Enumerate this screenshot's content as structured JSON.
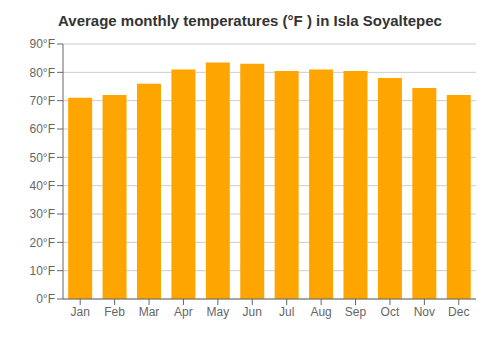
{
  "chart_data": {
    "type": "bar",
    "title": "Average monthly temperatures (°F ) in Isla Soyaltepec",
    "categories": [
      "Jan",
      "Feb",
      "Mar",
      "Apr",
      "May",
      "Jun",
      "Jul",
      "Aug",
      "Sep",
      "Oct",
      "Nov",
      "Dec"
    ],
    "values": [
      71,
      72,
      76,
      81,
      83.5,
      83,
      80.5,
      81,
      80.5,
      78,
      74.5,
      72
    ],
    "color": "#FFA500",
    "ylim": [
      0,
      90
    ],
    "yticks": [
      {
        "value": 0,
        "label": "0°F"
      },
      {
        "value": 10,
        "label": "10°F"
      },
      {
        "value": 20,
        "label": "20°F"
      },
      {
        "value": 30,
        "label": "30°F"
      },
      {
        "value": 40,
        "label": "40°F"
      },
      {
        "value": 50,
        "label": "50°F"
      },
      {
        "value": 60,
        "label": "60°F"
      },
      {
        "value": 70,
        "label": "70°F"
      },
      {
        "value": 80,
        "label": "80°F"
      },
      {
        "value": 90,
        "label": "90°F"
      }
    ],
    "grid": true
  }
}
